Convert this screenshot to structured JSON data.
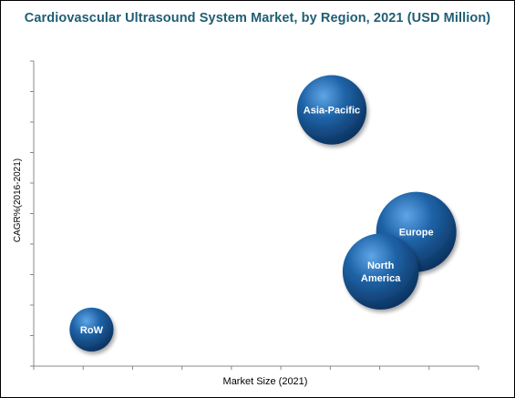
{
  "chart_data": {
    "type": "scatter",
    "title": "Cardiovascular Ultrasound System Market, by Region, 2021 (USD Million)",
    "xlabel": "Market Size (2021)",
    "ylabel": "CAGR%(2016-2021)",
    "grid": false,
    "legend": "none",
    "bubble_color": "#1b5e9c",
    "points": [
      {
        "label": "Asia-Pacific",
        "x": 0.67,
        "y": 0.84,
        "size": 0.75
      },
      {
        "label": "Europe",
        "x": 0.86,
        "y": 0.44,
        "size": 1.0
      },
      {
        "label": "North America",
        "x": 0.78,
        "y": 0.31,
        "size": 0.9
      },
      {
        "label": "RoW",
        "x": 0.13,
        "y": 0.12,
        "size": 0.3
      }
    ]
  }
}
